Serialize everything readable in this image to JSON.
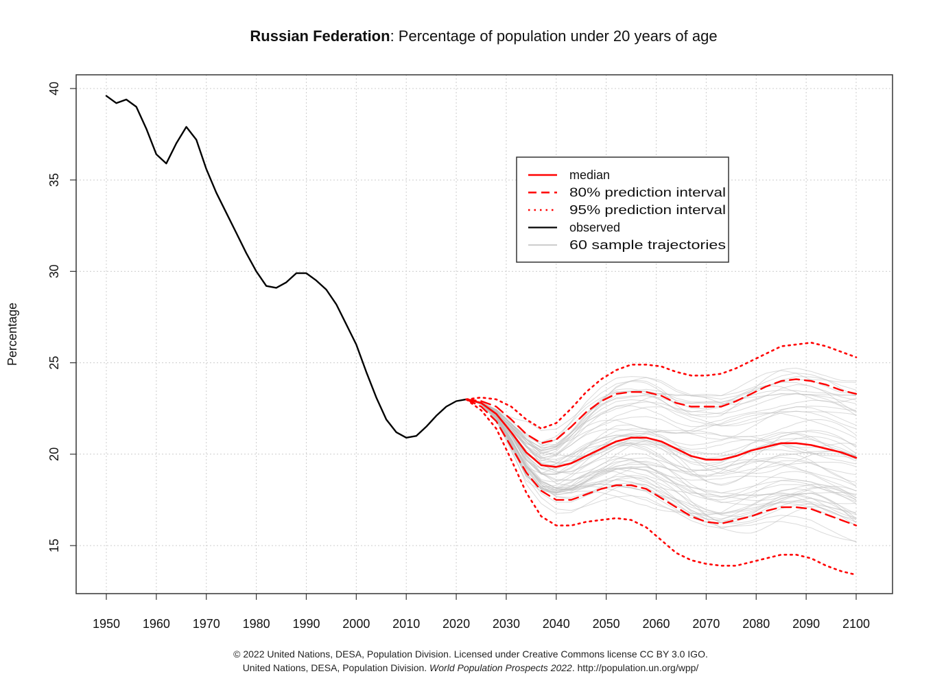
{
  "header": {
    "title_country": "Russian Federation",
    "title_rest": ": Percentage of population under 20 years of age"
  },
  "footer": {
    "line1": "© 2022 United Nations, DESA, Population Division. Licensed under Creative Commons license CC BY 3.0 IGO.",
    "line2_prefix": "United Nations, DESA, Population Division. ",
    "line2_italic": "World Population Prospects 2022",
    "line2_suffix": ". http://population.un.org/wpp/"
  },
  "colors": {
    "observed": "#000000",
    "median": "#ff0000",
    "interval": "#ff0000",
    "trajectory": "#bbbbbb",
    "grid": "#cccccc"
  },
  "chart_data": {
    "type": "line",
    "title": "Russian Federation: Percentage of population under 20 years of age",
    "xlabel": "",
    "ylabel": "Percentage",
    "xlim": [
      1950,
      2100
    ],
    "ylim": [
      12.5,
      40.5
    ],
    "xticks": [
      1950,
      1960,
      1970,
      1980,
      1990,
      2000,
      2010,
      2020,
      2030,
      2040,
      2050,
      2060,
      2070,
      2080,
      2090,
      2100
    ],
    "yticks": [
      15,
      20,
      25,
      30,
      35,
      40
    ],
    "grid": true,
    "legend_position": "top-right",
    "legend": [
      {
        "label": "median",
        "style": "solid-red"
      },
      {
        "label": "80% prediction interval",
        "style": "dashed-red"
      },
      {
        "label": "95% prediction interval",
        "style": "dotted-red"
      },
      {
        "label": "observed",
        "style": "solid-black"
      },
      {
        "label": "60 sample trajectories",
        "style": "solid-grey"
      }
    ],
    "series": [
      {
        "name": "observed",
        "x": [
          1950,
          1952,
          1954,
          1956,
          1958,
          1960,
          1962,
          1964,
          1966,
          1968,
          1970,
          1972,
          1974,
          1976,
          1978,
          1980,
          1982,
          1984,
          1986,
          1988,
          1990,
          1992,
          1994,
          1996,
          1998,
          2000,
          2002,
          2004,
          2006,
          2008,
          2010,
          2012,
          2014,
          2016,
          2018,
          2020,
          2022
        ],
        "y": [
          39.6,
          39.2,
          39.4,
          39.0,
          37.8,
          36.4,
          35.9,
          37.0,
          37.9,
          37.2,
          35.6,
          34.3,
          33.2,
          32.1,
          31.0,
          30.0,
          29.2,
          29.1,
          29.4,
          29.9,
          29.9,
          29.5,
          29.0,
          28.2,
          27.1,
          26.0,
          24.5,
          23.1,
          21.9,
          21.2,
          20.9,
          21.0,
          21.5,
          22.1,
          22.6,
          22.9,
          23.0
        ]
      },
      {
        "name": "median",
        "x": [
          2022,
          2025,
          2028,
          2031,
          2034,
          2037,
          2040,
          2043,
          2046,
          2049,
          2052,
          2055,
          2058,
          2061,
          2064,
          2067,
          2070,
          2073,
          2076,
          2079,
          2082,
          2085,
          2088,
          2091,
          2094,
          2097,
          2100
        ],
        "y": [
          23.0,
          22.8,
          22.2,
          21.2,
          20.1,
          19.4,
          19.3,
          19.5,
          19.9,
          20.3,
          20.7,
          20.9,
          20.9,
          20.7,
          20.3,
          19.9,
          19.7,
          19.7,
          19.9,
          20.2,
          20.4,
          20.6,
          20.6,
          20.5,
          20.3,
          20.1,
          19.8
        ]
      },
      {
        "name": "80% prediction interval (upper)",
        "x": [
          2022,
          2025,
          2028,
          2031,
          2034,
          2037,
          2040,
          2043,
          2046,
          2049,
          2052,
          2055,
          2058,
          2061,
          2064,
          2067,
          2070,
          2073,
          2076,
          2079,
          2082,
          2085,
          2088,
          2091,
          2094,
          2097,
          2100
        ],
        "y": [
          23.0,
          22.9,
          22.6,
          21.9,
          21.1,
          20.6,
          20.8,
          21.5,
          22.3,
          22.9,
          23.3,
          23.4,
          23.4,
          23.2,
          22.8,
          22.6,
          22.6,
          22.6,
          22.9,
          23.3,
          23.7,
          24.0,
          24.1,
          24.0,
          23.8,
          23.5,
          23.3
        ]
      },
      {
        "name": "80% prediction interval (lower)",
        "x": [
          2022,
          2025,
          2028,
          2031,
          2034,
          2037,
          2040,
          2043,
          2046,
          2049,
          2052,
          2055,
          2058,
          2061,
          2064,
          2067,
          2070,
          2073,
          2076,
          2079,
          2082,
          2085,
          2088,
          2091,
          2094,
          2097,
          2100
        ],
        "y": [
          23.0,
          22.6,
          21.8,
          20.4,
          19.0,
          18.0,
          17.5,
          17.5,
          17.8,
          18.1,
          18.3,
          18.3,
          18.1,
          17.6,
          17.1,
          16.6,
          16.3,
          16.2,
          16.4,
          16.6,
          16.9,
          17.1,
          17.1,
          17.0,
          16.7,
          16.4,
          16.1
        ]
      },
      {
        "name": "95% prediction interval (upper)",
        "x": [
          2022,
          2025,
          2028,
          2031,
          2034,
          2037,
          2040,
          2043,
          2046,
          2049,
          2052,
          2055,
          2058,
          2061,
          2064,
          2067,
          2070,
          2073,
          2076,
          2079,
          2082,
          2085,
          2088,
          2091,
          2094,
          2097,
          2100
        ],
        "y": [
          23.0,
          23.1,
          23.0,
          22.6,
          21.9,
          21.4,
          21.7,
          22.5,
          23.4,
          24.1,
          24.6,
          24.9,
          24.9,
          24.8,
          24.5,
          24.3,
          24.3,
          24.4,
          24.7,
          25.1,
          25.5,
          25.9,
          26.0,
          26.1,
          25.9,
          25.6,
          25.3
        ]
      },
      {
        "name": "95% prediction interval (lower)",
        "x": [
          2022,
          2025,
          2028,
          2031,
          2034,
          2037,
          2040,
          2043,
          2046,
          2049,
          2052,
          2055,
          2058,
          2061,
          2064,
          2067,
          2070,
          2073,
          2076,
          2079,
          2082,
          2085,
          2088,
          2091,
          2094,
          2097,
          2100
        ],
        "y": [
          23.0,
          22.4,
          21.4,
          19.7,
          17.9,
          16.6,
          16.1,
          16.1,
          16.3,
          16.4,
          16.5,
          16.4,
          16.0,
          15.3,
          14.6,
          14.2,
          14.0,
          13.9,
          13.9,
          14.1,
          14.3,
          14.5,
          14.5,
          14.3,
          13.9,
          13.6,
          13.4
        ]
      }
    ]
  }
}
